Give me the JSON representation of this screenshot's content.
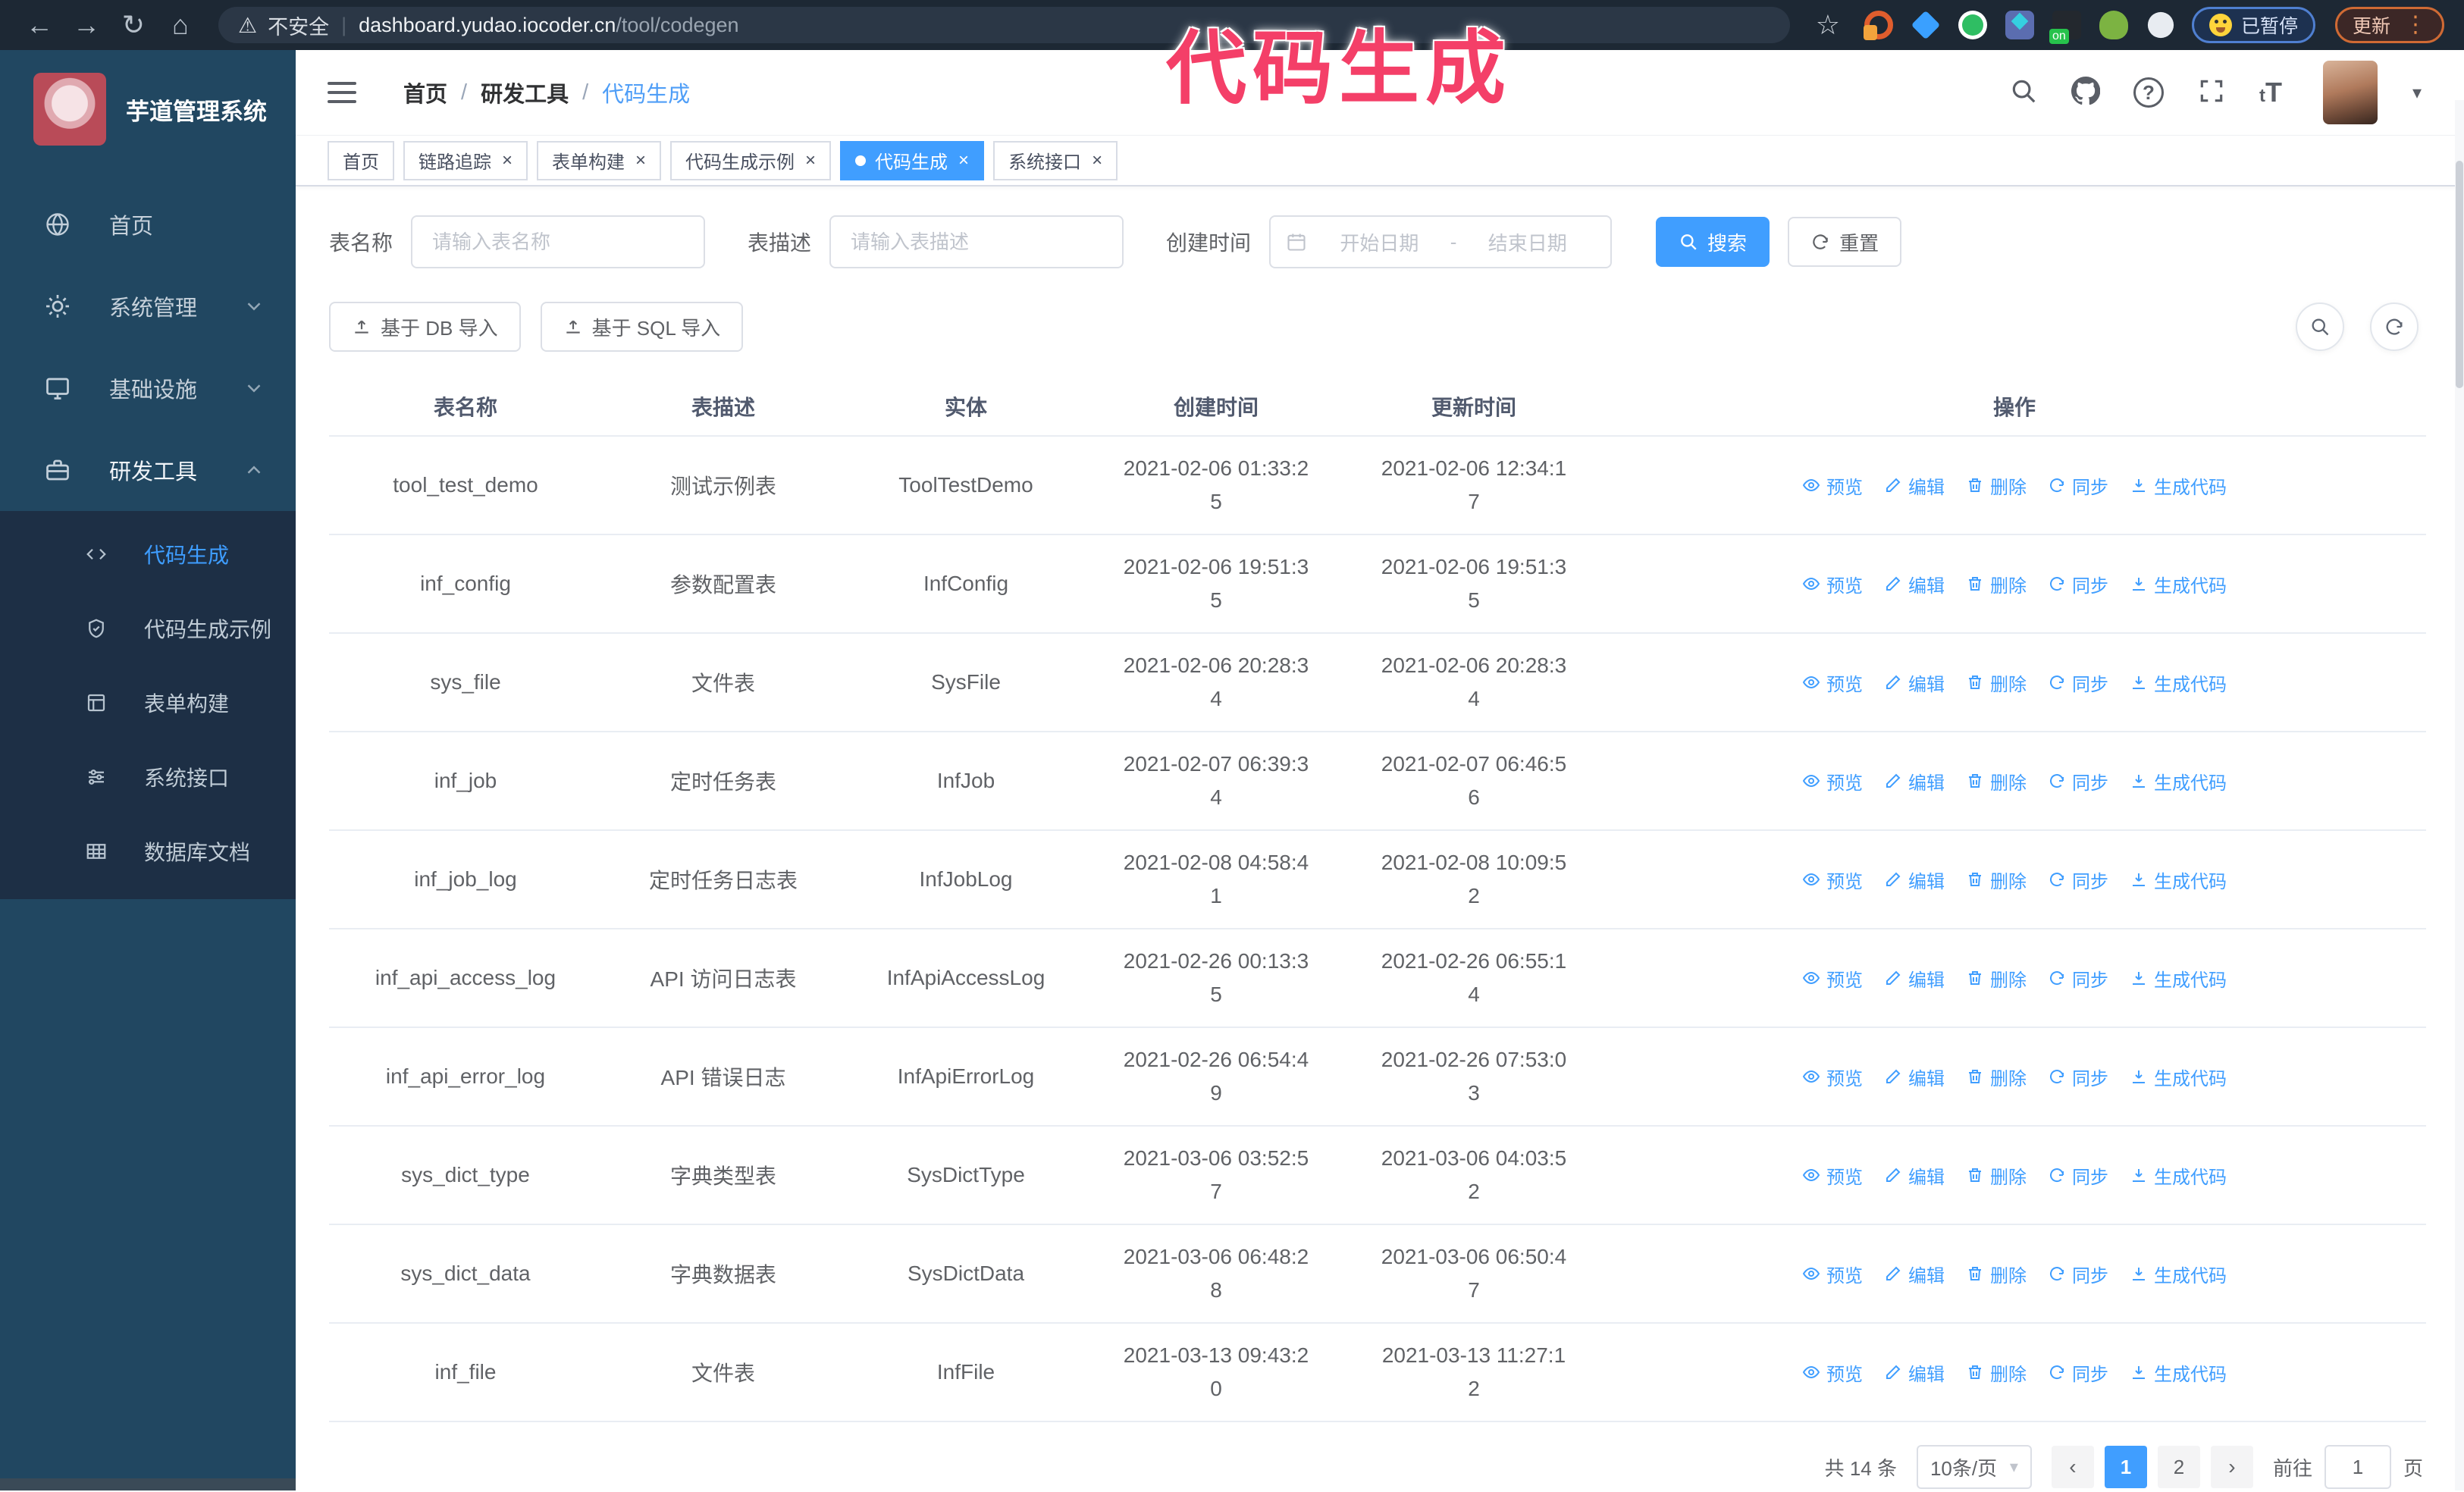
{
  "browser": {
    "security_label": "不安全",
    "url_host": "dashboard.yudao.iocoder.cn",
    "url_path": "/tool/codegen",
    "paused_badge": "已暂停",
    "update_button": "更新",
    "nav_icons": [
      "back",
      "forward",
      "reload",
      "home"
    ],
    "right_icons": [
      "bookmark-star",
      "extensions"
    ]
  },
  "annotation": "代码生成",
  "sidebar": {
    "title": "芋道管理系统",
    "items": [
      {
        "label": "首页",
        "icon": "home"
      },
      {
        "label": "系统管理",
        "icon": "gear",
        "expandable": true
      },
      {
        "label": "基础设施",
        "icon": "monitor",
        "expandable": true
      },
      {
        "label": "研发工具",
        "icon": "toolbox",
        "expanded": true
      }
    ],
    "subitems": [
      {
        "label": "代码生成",
        "icon": "code",
        "active": true
      },
      {
        "label": "代码生成示例",
        "icon": "shield"
      },
      {
        "label": "表单构建",
        "icon": "form"
      },
      {
        "label": "系统接口",
        "icon": "sliders"
      },
      {
        "label": "数据库文档",
        "icon": "dbdoc"
      }
    ]
  },
  "header": {
    "breadcrumb": [
      "首页",
      "研发工具",
      "代码生成"
    ],
    "breadcrumb_separator": "/",
    "icons": [
      "search",
      "github",
      "question",
      "fullscreen",
      "font-size",
      "avatar",
      "caret-down"
    ]
  },
  "tabs": [
    {
      "label": "首页",
      "closable": false
    },
    {
      "label": "链路追踪",
      "closable": true
    },
    {
      "label": "表单构建",
      "closable": true
    },
    {
      "label": "代码生成示例",
      "closable": true
    },
    {
      "label": "代码生成",
      "closable": true,
      "active": true
    },
    {
      "label": "系统接口",
      "closable": true
    }
  ],
  "filters": {
    "table_name_label": "表名称",
    "table_name_placeholder": "请输入表名称",
    "table_desc_label": "表描述",
    "table_desc_placeholder": "请输入表描述",
    "create_time_label": "创建时间",
    "date_start_placeholder": "开始日期",
    "date_separator": "-",
    "date_end_placeholder": "结束日期",
    "search_label": "搜索",
    "reset_label": "重置"
  },
  "toolbar": {
    "import_db_label": "基于 DB 导入",
    "import_sql_label": "基于 SQL 导入",
    "circle_buttons": [
      "show-search",
      "refresh"
    ]
  },
  "table": {
    "columns": [
      "表名称",
      "表描述",
      "实体",
      "创建时间",
      "更新时间",
      "操作"
    ],
    "actions": [
      "预览",
      "编辑",
      "删除",
      "同步",
      "生成代码"
    ],
    "rows": [
      {
        "name": "tool_test_demo",
        "desc": "测试示例表",
        "entity": "ToolTestDemo",
        "created": "2021-02-06 01:33:25",
        "updated": "2021-02-06 12:34:17"
      },
      {
        "name": "inf_config",
        "desc": "参数配置表",
        "entity": "InfConfig",
        "created": "2021-02-06 19:51:35",
        "updated": "2021-02-06 19:51:35"
      },
      {
        "name": "sys_file",
        "desc": "文件表",
        "entity": "SysFile",
        "created": "2021-02-06 20:28:34",
        "updated": "2021-02-06 20:28:34"
      },
      {
        "name": "inf_job",
        "desc": "定时任务表",
        "entity": "InfJob",
        "created": "2021-02-07 06:39:34",
        "updated": "2021-02-07 06:46:56"
      },
      {
        "name": "inf_job_log",
        "desc": "定时任务日志表",
        "entity": "InfJobLog",
        "created": "2021-02-08 04:58:41",
        "updated": "2021-02-08 10:09:52"
      },
      {
        "name": "inf_api_access_log",
        "desc": "API 访问日志表",
        "entity": "InfApiAccessLog",
        "created": "2021-02-26 00:13:35",
        "updated": "2021-02-26 06:55:14"
      },
      {
        "name": "inf_api_error_log",
        "desc": "API 错误日志",
        "entity": "InfApiErrorLog",
        "created": "2021-02-26 06:54:49",
        "updated": "2021-02-26 07:53:03"
      },
      {
        "name": "sys_dict_type",
        "desc": "字典类型表",
        "entity": "SysDictType",
        "created": "2021-03-06 03:52:57",
        "updated": "2021-03-06 04:03:52"
      },
      {
        "name": "sys_dict_data",
        "desc": "字典数据表",
        "entity": "SysDictData",
        "created": "2021-03-06 06:48:28",
        "updated": "2021-03-06 06:50:47"
      },
      {
        "name": "inf_file",
        "desc": "文件表",
        "entity": "InfFile",
        "created": "2021-03-13 09:43:20",
        "updated": "2021-03-13 11:27:12"
      }
    ]
  },
  "pagination": {
    "total_label": "共 14 条",
    "page_size": "10条/页",
    "pages": [
      "1",
      "2"
    ],
    "active_page": "1",
    "prev_icon": "‹",
    "next_icon": "›",
    "goto_label": "前往",
    "goto_value": "1",
    "page_suffix": "页"
  },
  "colors": {
    "accent": "#409eff",
    "annotation": "#f43f68",
    "sidebar_bg": "#214761",
    "submenu_bg": "#1d2f45",
    "browser_bar_bg": "#1d2834",
    "link": "#409eff"
  }
}
